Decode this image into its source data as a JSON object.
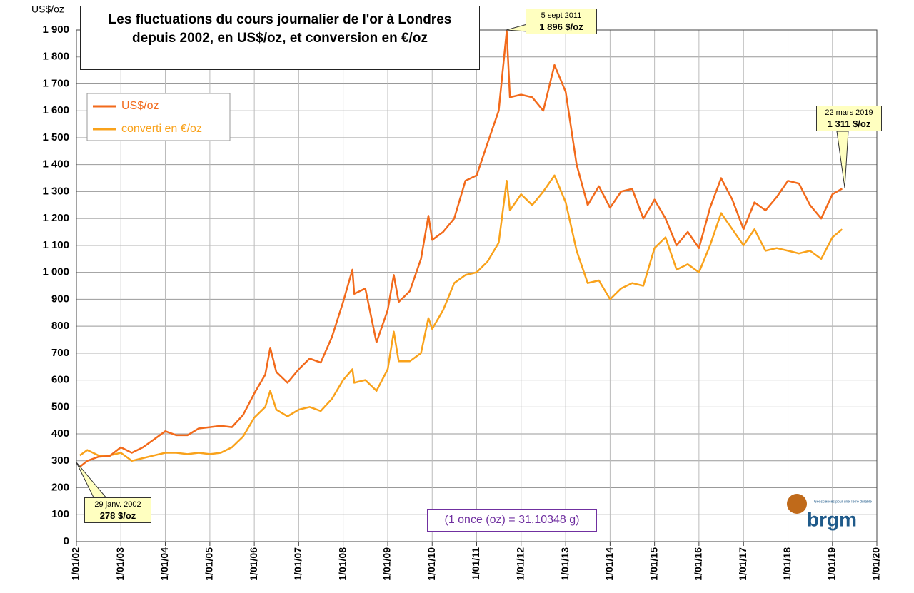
{
  "chart_data": {
    "type": "line",
    "title": "Les fluctuations du cours journalier de l'or à Londres depuis 2002, en US$/oz, et conversion en €/oz",
    "y_label": "US$/oz",
    "note": "(1 once (oz) = 31,10348 g)",
    "logo": "brgm",
    "logo_tagline": "Géosciences pour une Terre durable",
    "annotations": [
      {
        "date": "5 sept 2011",
        "label": "1 896 $/oz"
      },
      {
        "date": "22 mars 2019",
        "label": "1 311 $/oz"
      },
      {
        "date": "29 janv. 2002",
        "label": "278 $/oz"
      }
    ],
    "grid": true,
    "legend": "upper left",
    "x": [
      "2002-01-29",
      "2002-04-01",
      "2002-07-01",
      "2002-10-01",
      "2003-01-01",
      "2003-04-01",
      "2003-07-01",
      "2003-10-01",
      "2004-01-01",
      "2004-04-01",
      "2004-07-01",
      "2004-10-01",
      "2005-01-01",
      "2005-04-01",
      "2005-07-01",
      "2005-10-01",
      "2006-01-01",
      "2006-04-01",
      "2006-05-12",
      "2006-07-01",
      "2006-10-01",
      "2007-01-01",
      "2007-04-01",
      "2007-07-01",
      "2007-10-01",
      "2008-01-01",
      "2008-03-17",
      "2008-04-01",
      "2008-07-01",
      "2008-10-01",
      "2009-01-01",
      "2009-02-20",
      "2009-04-01",
      "2009-07-01",
      "2009-10-01",
      "2009-12-01",
      "2010-01-01",
      "2010-04-01",
      "2010-07-01",
      "2010-10-01",
      "2011-01-01",
      "2011-04-01",
      "2011-07-01",
      "2011-09-05",
      "2011-10-01",
      "2012-01-01",
      "2012-04-01",
      "2012-07-01",
      "2012-10-01",
      "2013-01-01",
      "2013-04-01",
      "2013-07-01",
      "2013-10-01",
      "2014-01-01",
      "2014-04-01",
      "2014-07-01",
      "2014-10-01",
      "2015-01-01",
      "2015-04-01",
      "2015-07-01",
      "2015-10-01",
      "2016-01-01",
      "2016-04-01",
      "2016-07-01",
      "2016-10-01",
      "2017-01-01",
      "2017-04-01",
      "2017-07-01",
      "2017-10-01",
      "2018-01-01",
      "2018-04-01",
      "2018-07-01",
      "2018-10-01",
      "2019-01-01",
      "2019-03-22"
    ],
    "series": [
      {
        "name": "US$/oz",
        "color": "#f26a1b",
        "values": [
          278,
          300,
          315,
          318,
          350,
          330,
          350,
          380,
          410,
          395,
          395,
          420,
          425,
          430,
          425,
          470,
          550,
          620,
          720,
          630,
          590,
          640,
          680,
          665,
          760,
          890,
          1010,
          920,
          940,
          740,
          860,
          990,
          890,
          930,
          1050,
          1210,
          1120,
          1150,
          1200,
          1340,
          1360,
          1480,
          1600,
          1896,
          1650,
          1660,
          1650,
          1600,
          1770,
          1670,
          1400,
          1250,
          1320,
          1240,
          1300,
          1310,
          1200,
          1270,
          1200,
          1100,
          1150,
          1090,
          1240,
          1350,
          1270,
          1160,
          1260,
          1230,
          1280,
          1340,
          1330,
          1250,
          1200,
          1290,
          1311
        ]
      },
      {
        "name": "converti en €/oz",
        "color": "#f9a21b",
        "values": [
          320,
          340,
          320,
          320,
          330,
          300,
          310,
          320,
          330,
          330,
          325,
          330,
          325,
          330,
          350,
          390,
          460,
          500,
          560,
          490,
          465,
          490,
          500,
          485,
          530,
          600,
          640,
          590,
          600,
          560,
          640,
          780,
          670,
          670,
          700,
          830,
          790,
          860,
          960,
          990,
          1000,
          1040,
          1110,
          1340,
          1230,
          1290,
          1250,
          1300,
          1360,
          1260,
          1080,
          960,
          970,
          900,
          940,
          960,
          950,
          1090,
          1130,
          1010,
          1030,
          1000,
          1100,
          1220,
          1160,
          1100,
          1160,
          1080,
          1090,
          1080,
          1070,
          1080,
          1050,
          1130,
          1160
        ]
      }
    ],
    "xlim": [
      "2002-01-01",
      "2020-01-01"
    ],
    "xticks": [
      {
        "value": "2002-01-01",
        "label": "1/01/02"
      },
      {
        "value": "2003-01-01",
        "label": "1/01/03"
      },
      {
        "value": "2004-01-01",
        "label": "1/01/04"
      },
      {
        "value": "2005-01-01",
        "label": "1/01/05"
      },
      {
        "value": "2006-01-01",
        "label": "1/01/06"
      },
      {
        "value": "2007-01-01",
        "label": "1/01/07"
      },
      {
        "value": "2008-01-01",
        "label": "1/01/08"
      },
      {
        "value": "2009-01-01",
        "label": "1/01/09"
      },
      {
        "value": "2010-01-01",
        "label": "1/01/10"
      },
      {
        "value": "2011-01-01",
        "label": "1/01/11"
      },
      {
        "value": "2012-01-01",
        "label": "1/01/12"
      },
      {
        "value": "2013-01-01",
        "label": "1/01/13"
      },
      {
        "value": "2014-01-01",
        "label": "1/01/14"
      },
      {
        "value": "2015-01-01",
        "label": "1/01/15"
      },
      {
        "value": "2016-01-01",
        "label": "1/01/16"
      },
      {
        "value": "2017-01-01",
        "label": "1/01/17"
      },
      {
        "value": "2018-01-01",
        "label": "1/01/18"
      },
      {
        "value": "2019-01-01",
        "label": "1/01/19"
      },
      {
        "value": "2020-01-01",
        "label": "1/01/20"
      }
    ],
    "ylim": [
      0,
      1900
    ],
    "yticks": [
      0,
      100,
      200,
      300,
      400,
      500,
      600,
      700,
      800,
      900,
      {
        "value": 1000,
        "label": "1 000"
      },
      {
        "value": 1100,
        "label": "1 100"
      },
      {
        "value": 1200,
        "label": "1 200"
      },
      {
        "value": 1300,
        "label": "1 300"
      },
      {
        "value": 1400,
        "label": "1 400"
      },
      {
        "value": 1500,
        "label": "1 500"
      },
      {
        "value": 1600,
        "label": "1 600"
      },
      {
        "value": 1700,
        "label": "1 700"
      },
      {
        "value": 1800,
        "label": "1 800"
      },
      {
        "value": 1900,
        "label": "1 900"
      }
    ]
  }
}
